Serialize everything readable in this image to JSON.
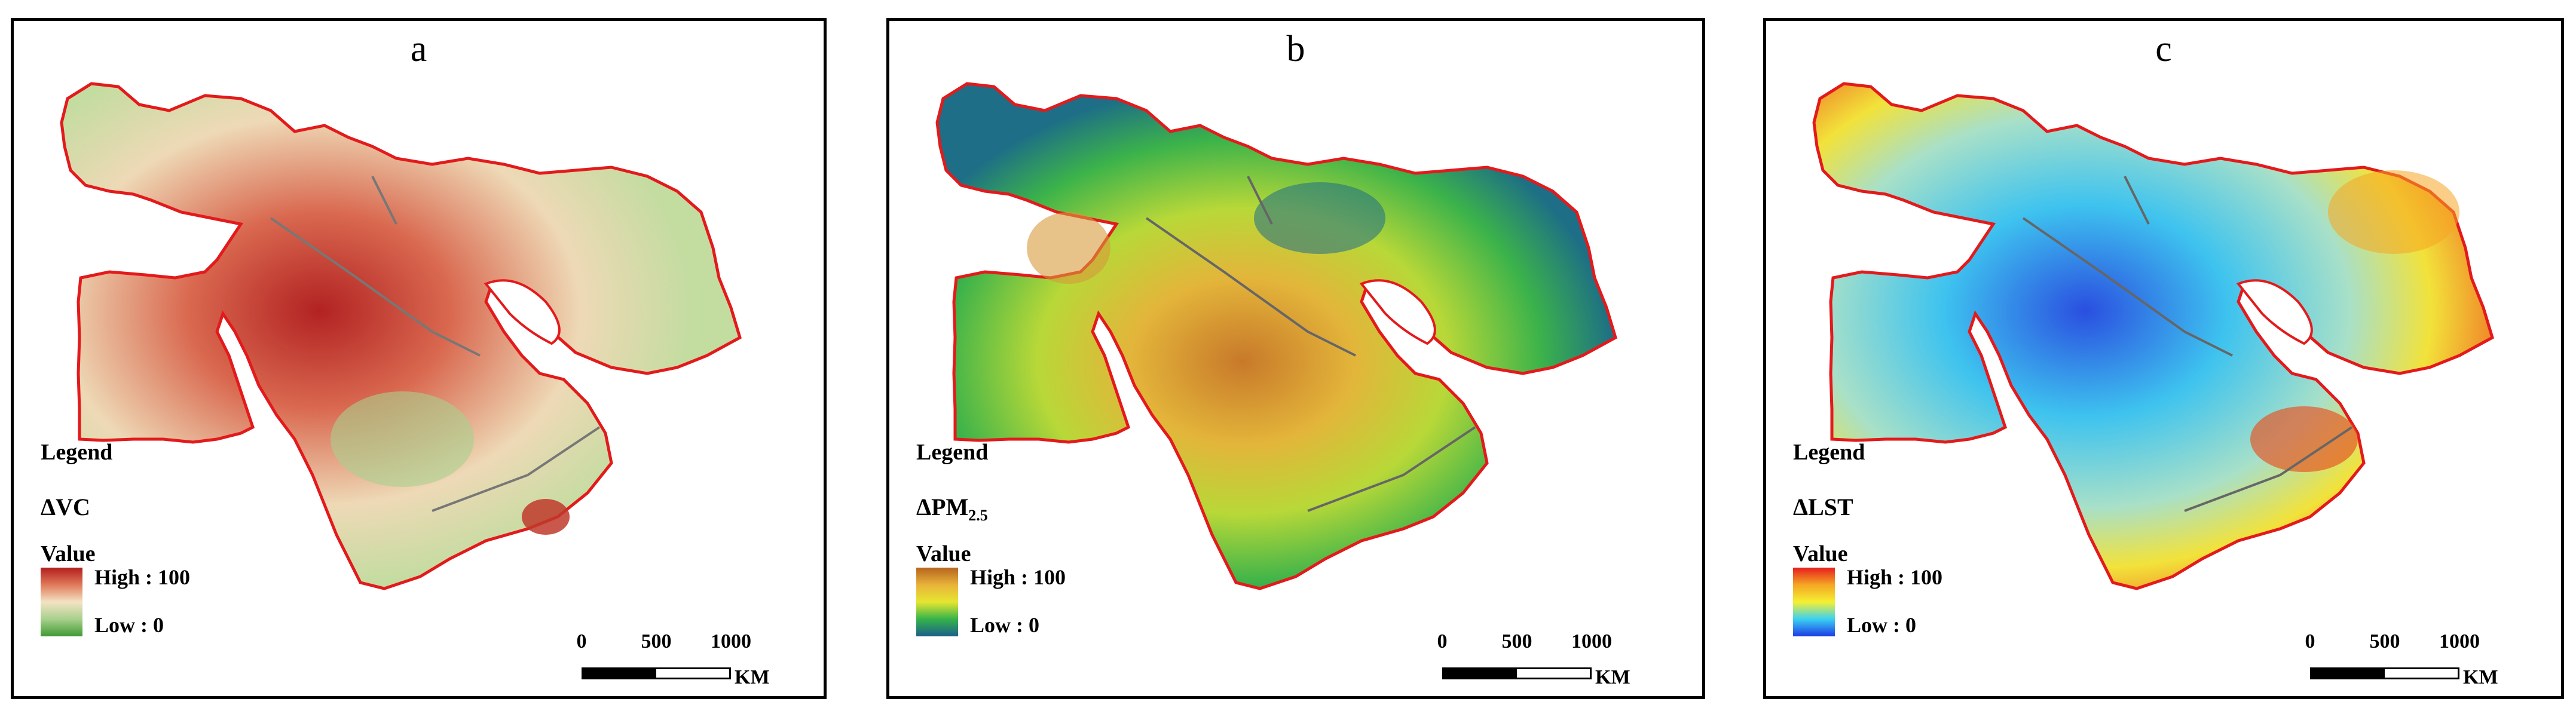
{
  "panels": [
    {
      "letter": "a",
      "legend_title": "Legend",
      "variable": "ΔVC",
      "variable_sub": "",
      "value_label": "Value",
      "high_label": "High : 100",
      "low_label": "Low : 0",
      "ramp_colors": [
        "#b11e1e",
        "#e07a5a",
        "#f3e3c3",
        "#a8d08d",
        "#3f9a32"
      ],
      "border_color": "#e31a1c"
    },
    {
      "letter": "b",
      "legend_title": "Legend",
      "variable": "ΔPM",
      "variable_sub": "2.5",
      "value_label": "Value",
      "high_label": "High : 100",
      "low_label": "Low : 0",
      "ramp_colors": [
        "#b5651d",
        "#e8b33a",
        "#e6e631",
        "#35b34a",
        "#1a5f8a"
      ],
      "border_color": "#e31a1c"
    },
    {
      "letter": "c",
      "legend_title": "Legend",
      "variable": "ΔLST",
      "variable_sub": "",
      "value_label": "Value",
      "high_label": "High : 100",
      "low_label": "Low : 0",
      "ramp_colors": [
        "#e61e1e",
        "#f5a623",
        "#f5f032",
        "#3ad1f2",
        "#1e3ae6"
      ],
      "border_color": "#e31a1c"
    }
  ],
  "scalebar": {
    "ticks": [
      "0",
      "500",
      "1000"
    ],
    "unit": "KM"
  }
}
